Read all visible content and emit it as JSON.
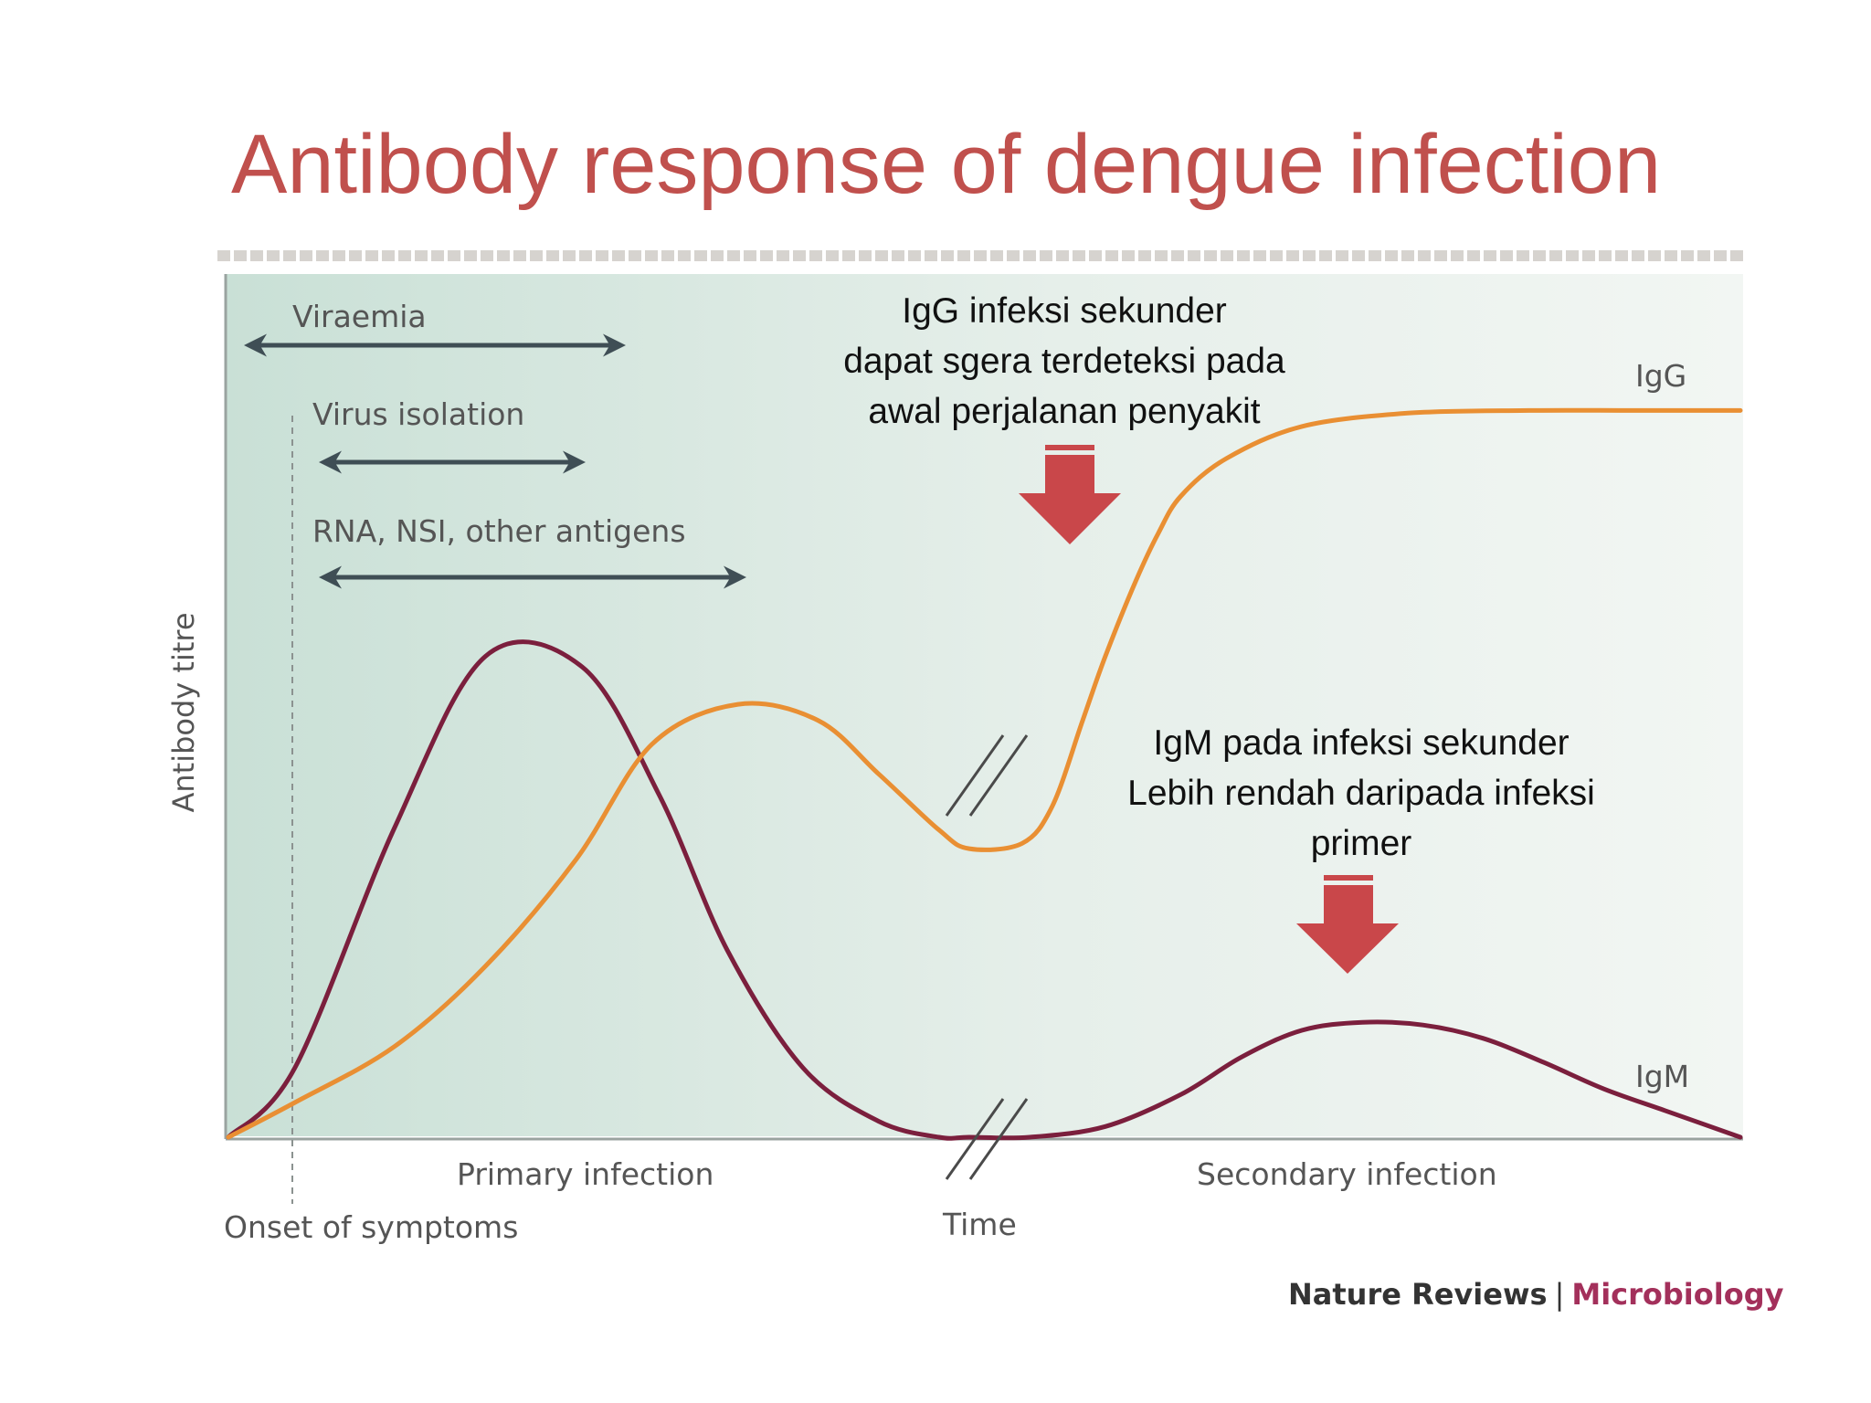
{
  "slide": {
    "title": "Antibody response of dengue infection"
  },
  "phases": {
    "viraemia": "Viraemia",
    "virus_isolation": "Virus isolation",
    "antigens": "RNA, NSI, other antigens"
  },
  "annotations": {
    "igg": [
      "IgG infeksi sekunder",
      "dapat sgera terdeteksi pada",
      "awal perjalanan penyakit"
    ],
    "igm": [
      "IgM pada infeksi sekunder",
      "Lebih rendah daripada infeksi",
      "primer"
    ]
  },
  "credit": {
    "journal": "Nature Reviews",
    "separator": "|",
    "section": "Microbiology"
  },
  "colors": {
    "title": "#c0504d",
    "igg": "#e98f33",
    "igm": "#7b1f3d",
    "arrow": "#c9474a",
    "phase_arrow": "#3f4e55"
  },
  "chart_data": {
    "type": "line",
    "title": "",
    "ylabel": "Antibody titre",
    "xlabel": "Time",
    "x_axis_labels": [
      "Onset of symptoms",
      "Primary infection",
      "Secondary infection"
    ],
    "xlim": [
      0,
      100
    ],
    "ylim": [
      0,
      100
    ],
    "ticks": false,
    "axis_break": true,
    "series": [
      {
        "name": "IgG",
        "x": [
          0,
          4.4,
          11,
          17,
          23,
          28,
          33.7,
          39,
          43,
          47,
          49,
          52.5,
          54.5,
          56.5,
          58,
          60,
          61.5,
          63,
          66,
          71,
          78,
          86,
          93,
          100
        ],
        "y": [
          0,
          6.5,
          17,
          32,
          52,
          73.5,
          81,
          78,
          68,
          57.5,
          54,
          55,
          62,
          78,
          90,
          104,
          113,
          120,
          127,
          133,
          135.5,
          136,
          136,
          136
        ]
      },
      {
        "name": "IgM",
        "x": [
          0,
          4.4,
          11,
          17,
          23.4,
          28.5,
          33,
          38,
          43,
          47,
          49,
          53,
          58,
          63,
          67,
          71,
          75,
          79,
          83,
          87,
          91,
          95,
          100
        ],
        "y": [
          0,
          13,
          58,
          90,
          88,
          64,
          35,
          13,
          3,
          0,
          0,
          0,
          2,
          8,
          15,
          20,
          21.5,
          21,
          18.5,
          14,
          9,
          5,
          0
        ]
      }
    ]
  }
}
